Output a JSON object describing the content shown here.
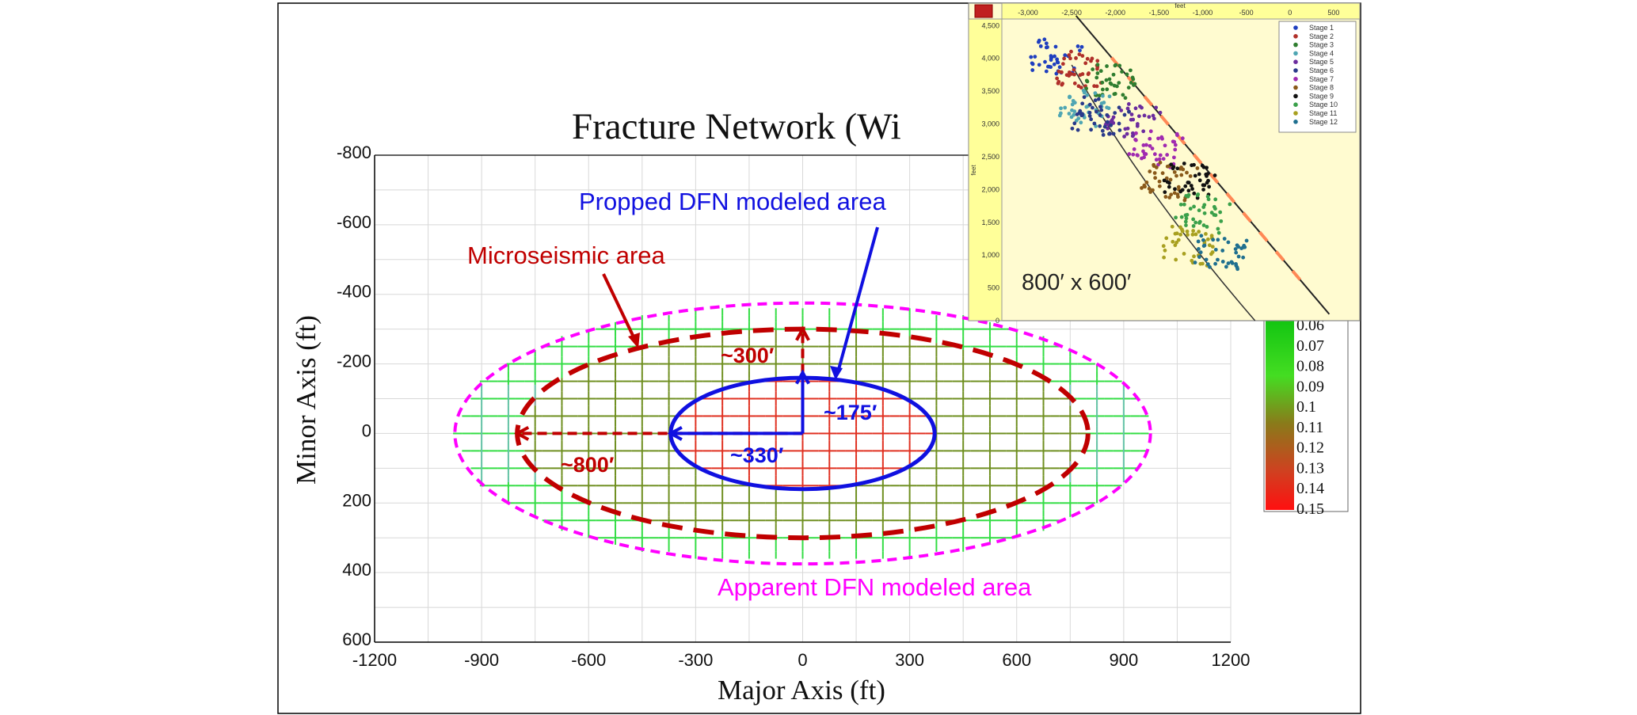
{
  "main_chart": {
    "title": "Fracture Network (Wi",
    "xlabel": "Major Axis (ft)",
    "ylabel": "Minor Axis (ft)",
    "x_ticks": [
      "-1200",
      "-900",
      "-600",
      "-300",
      "0",
      "300",
      "600",
      "900",
      "1200"
    ],
    "y_ticks": [
      "-800",
      "-600",
      "-400",
      "-200",
      "0",
      "200",
      "400",
      "600"
    ],
    "annotations": {
      "propped": "Propped DFN modeled area",
      "microseismic": "Microseismic area",
      "apparent": "Apparent DFN modeled area",
      "dim_300": "~300′",
      "dim_175": "~175′",
      "dim_330": "~330′",
      "dim_800": "~800′"
    },
    "colorbar_labels": [
      "0.06",
      "0.07",
      "0.08",
      "0.09",
      "0.1",
      "0.11",
      "0.12",
      "0.13",
      "0.14",
      "0.15"
    ],
    "colors": {
      "propped": "#1010e0",
      "microseismic": "#c00000",
      "apparent": "#ff00ff"
    }
  },
  "inset": {
    "size_label": "800′ x 600′",
    "axis_unit": "feet",
    "x_ticks": [
      "-3,000",
      "-2,500",
      "-2,000",
      "-1,500",
      "-1,000",
      "-500",
      "0",
      "500"
    ],
    "y_ticks": [
      "4,500",
      "4,000",
      "3,500",
      "3,000",
      "2,500",
      "2,000",
      "1,500",
      "1,000",
      "500",
      "0"
    ],
    "icon": "map-icon"
  },
  "chart_data": [
    {
      "type": "heatmap",
      "title": "Fracture Network (Wi",
      "xlabel": "Major Axis (ft)",
      "ylabel": "Minor Axis (ft)",
      "xlim": [
        -1200,
        1200
      ],
      "ylim": [
        -800,
        600
      ],
      "y_inverted": true,
      "grid": true,
      "colorbar": {
        "min": 0.06,
        "max": 0.15,
        "labels": [
          "0.06",
          "0.07",
          "0.08",
          "0.09",
          "0.1",
          "0.11",
          "0.12",
          "0.13",
          "0.14",
          "0.15"
        ]
      },
      "ellipses": [
        {
          "name": "Apparent DFN modeled area",
          "center": [
            0,
            0
          ],
          "semi_major": 975,
          "semi_minor": 375,
          "style": "dashed",
          "color": "#ff00ff"
        },
        {
          "name": "Microseismic area",
          "center": [
            0,
            0
          ],
          "semi_major": 800,
          "semi_minor": 300,
          "style": "dashed",
          "color": "#c00000"
        },
        {
          "name": "Propped DFN modeled area",
          "center": [
            0,
            0
          ],
          "semi_major": 370,
          "semi_minor": 160,
          "style": "solid",
          "color": "#1010e0"
        }
      ],
      "dimensions": [
        {
          "label": "~300′",
          "from": [
            0,
            0
          ],
          "to": [
            0,
            -300
          ]
        },
        {
          "label": "~800′",
          "from": [
            0,
            0
          ],
          "to": [
            -800,
            0
          ]
        },
        {
          "label": "~175′",
          "from": [
            0,
            0
          ],
          "to": [
            0,
            -175
          ]
        },
        {
          "label": "~330′",
          "from": [
            0,
            0
          ],
          "to": [
            -370,
            0
          ]
        }
      ]
    },
    {
      "type": "scatter",
      "xlabel": "feet",
      "ylabel": "feet",
      "xlim": [
        -3300,
        800
      ],
      "ylim": [
        0,
        4600
      ],
      "legend_position": "top-right",
      "series": [
        {
          "name": "Stage 1",
          "color": "#1f3fbf",
          "center": [
            -2700,
            4000
          ]
        },
        {
          "name": "Stage 2",
          "color": "#b0302a",
          "center": [
            -2350,
            3800
          ]
        },
        {
          "name": "Stage 3",
          "color": "#2f7d2f",
          "center": [
            -2050,
            3650
          ]
        },
        {
          "name": "Stage 4",
          "color": "#4fa6b3",
          "center": [
            -2350,
            3250
          ]
        },
        {
          "name": "Stage 5",
          "color": "#6b2c9e",
          "center": [
            -1800,
            3050
          ]
        },
        {
          "name": "Stage 6",
          "color": "#2a3a8a",
          "center": [
            -2150,
            3100
          ]
        },
        {
          "name": "Stage 7",
          "color": "#a02ab0",
          "center": [
            -1550,
            2650
          ]
        },
        {
          "name": "Stage 8",
          "color": "#8a5a1a",
          "center": [
            -1400,
            2150
          ]
        },
        {
          "name": "Stage 9",
          "color": "#111111",
          "center": [
            -1150,
            2150
          ]
        },
        {
          "name": "Stage 10",
          "color": "#3aa04a",
          "center": [
            -1000,
            1650
          ]
        },
        {
          "name": "Stage 11",
          "color": "#a8a020",
          "center": [
            -1150,
            1150
          ]
        },
        {
          "name": "Stage 12",
          "color": "#1f6f8f",
          "center": [
            -800,
            1050
          ]
        }
      ],
      "wellbore": {
        "color": "#222222",
        "from": [
          -2450,
          4650
        ],
        "to": [
          450,
          100
        ]
      }
    }
  ]
}
